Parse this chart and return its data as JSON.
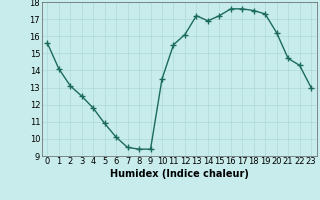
{
  "x": [
    0,
    1,
    2,
    3,
    4,
    5,
    6,
    7,
    8,
    9,
    10,
    11,
    12,
    13,
    14,
    15,
    16,
    17,
    18,
    19,
    20,
    21,
    22,
    23
  ],
  "y": [
    15.6,
    14.1,
    13.1,
    12.5,
    11.8,
    10.9,
    10.1,
    9.5,
    9.4,
    9.4,
    13.5,
    15.5,
    16.1,
    17.2,
    16.9,
    17.2,
    17.6,
    17.6,
    17.5,
    17.3,
    16.2,
    14.7,
    14.3,
    13.0
  ],
  "line_color": "#1a6b5a",
  "marker": "+",
  "marker_size": 4,
  "bg_color": "#c8ecec",
  "grid_color": "#aed8d8",
  "xlabel": "Humidex (Indice chaleur)",
  "ylabel": "",
  "xlim": [
    -0.5,
    23.5
  ],
  "ylim": [
    9,
    18
  ],
  "yticks": [
    9,
    10,
    11,
    12,
    13,
    14,
    15,
    16,
    17,
    18
  ],
  "xticks": [
    0,
    1,
    2,
    3,
    4,
    5,
    6,
    7,
    8,
    9,
    10,
    11,
    12,
    13,
    14,
    15,
    16,
    17,
    18,
    19,
    20,
    21,
    22,
    23
  ],
  "xlabel_fontsize": 7,
  "tick_fontsize": 6,
  "linewidth": 1.0,
  "markeredgewidth": 1.0
}
